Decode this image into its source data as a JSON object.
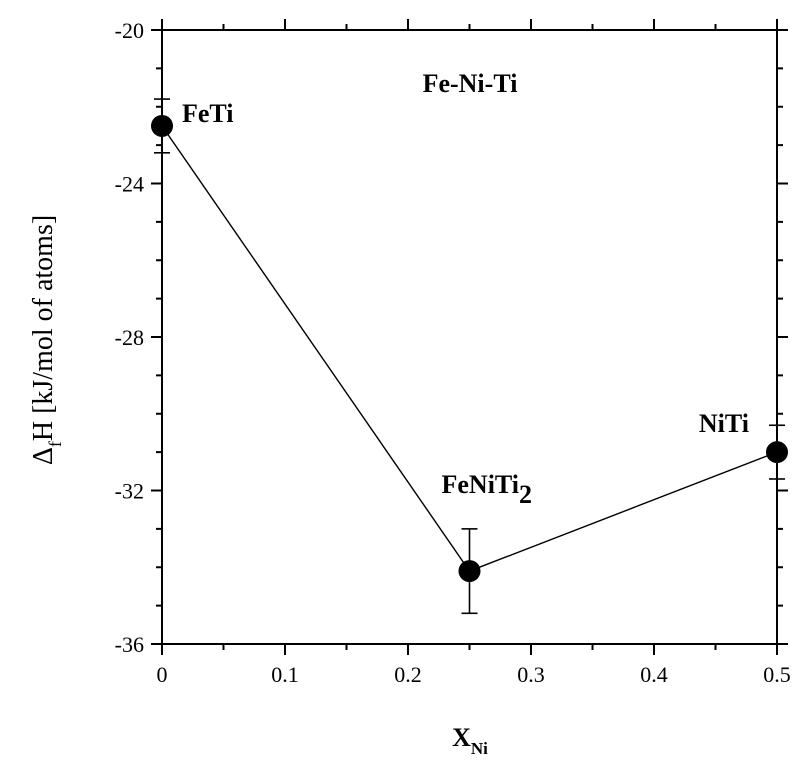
{
  "chart_data": {
    "type": "scatter",
    "title": "Fe-Ni-Ti",
    "xlabel": "X",
    "xlabel_sub": "Ni",
    "ylabel": "ΔfH [kJ/mol of atoms]",
    "ylabel_parts": {
      "delta": "Δ",
      "sub": "f",
      "rest": "H [kJ/mol of atoms]"
    },
    "xlim": [
      0,
      0.5
    ],
    "ylim": [
      -36,
      -20
    ],
    "x_ticks": [
      0,
      0.1,
      0.2,
      0.3,
      0.4,
      0.5
    ],
    "x_tick_labels": [
      "0",
      "0.1",
      "0.2",
      "0.3",
      "0.4",
      "0.5"
    ],
    "x_minor_step": 0.05,
    "y_ticks": [
      -36,
      -32,
      -28,
      -24,
      -20
    ],
    "y_tick_labels": [
      "-36",
      "-32",
      "-28",
      "-24",
      "-20"
    ],
    "y_minor_step": 1,
    "grid": false,
    "series": [
      {
        "points": [
          {
            "x": 0,
            "y": -22.5,
            "err": 0.7,
            "label": "FeTi",
            "label_sub": ""
          },
          {
            "x": 0.25,
            "y": -34.1,
            "err": 1.1,
            "label": "FeNiTi",
            "label_sub": "2"
          },
          {
            "x": 0.5,
            "y": -31.0,
            "err": 0.7,
            "label": "NiTi",
            "label_sub": ""
          }
        ]
      }
    ]
  }
}
